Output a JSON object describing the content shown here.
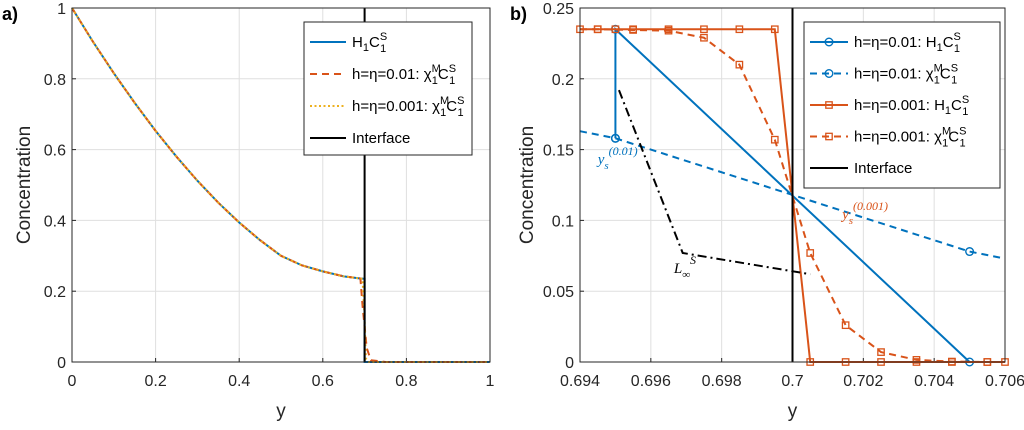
{
  "chart_data": [
    {
      "panel": "a)",
      "type": "line",
      "xlabel": "y",
      "ylabel": "Concentration",
      "xlim": [
        0,
        1
      ],
      "ylim": [
        0,
        1
      ],
      "xticks": [
        "0",
        "0.2",
        "0.4",
        "0.6",
        "0.8",
        "1"
      ],
      "yticks": [
        "0",
        "0.2",
        "0.4",
        "0.6",
        "0.8",
        "1"
      ],
      "grid": true,
      "legend_position": "top-right",
      "series": [
        {
          "name": "H1C1S",
          "legend_label": {
            "base": "H",
            "sub1": "1",
            "mid": "C",
            "sup": "S",
            "sub2": "1"
          },
          "color": "#0072BD",
          "style": "solid",
          "x": [
            0,
            0.05,
            0.1,
            0.15,
            0.2,
            0.25,
            0.3,
            0.35,
            0.4,
            0.45,
            0.5,
            0.55,
            0.6,
            0.65,
            0.69,
            0.7,
            0.7,
            0.75,
            1
          ],
          "y": [
            1,
            0.905,
            0.816,
            0.732,
            0.653,
            0.58,
            0.512,
            0.45,
            0.394,
            0.344,
            0.3,
            0.273,
            0.256,
            0.242,
            0.236,
            0.235,
            0,
            0,
            0
          ]
        },
        {
          "name": "h=η=0.01: χ1MC1S",
          "legend_label": {
            "prefix": "h=η=0.01: χ",
            "sup1": "M",
            "sub1": "1",
            "mid": "C",
            "sup2": "S",
            "sub2": "1"
          },
          "color": "#D95319",
          "style": "dashed",
          "x": [
            0,
            0.05,
            0.1,
            0.15,
            0.2,
            0.25,
            0.3,
            0.35,
            0.4,
            0.45,
            0.5,
            0.55,
            0.6,
            0.65,
            0.69,
            0.695,
            0.705,
            0.715,
            0.75,
            1
          ],
          "y": [
            1,
            0.905,
            0.816,
            0.732,
            0.653,
            0.58,
            0.512,
            0.45,
            0.394,
            0.344,
            0.3,
            0.273,
            0.256,
            0.242,
            0.236,
            0.16,
            0.04,
            0.005,
            0,
            0
          ]
        },
        {
          "name": "h=η=0.001: χ1MC1S",
          "legend_label": {
            "prefix": "h=η=0.001: χ",
            "sup1": "M",
            "sub1": "1",
            "mid": "C",
            "sup2": "S",
            "sub2": "1"
          },
          "color": "#EDB120",
          "style": "dotted",
          "x": [
            0,
            0.05,
            0.1,
            0.15,
            0.2,
            0.25,
            0.3,
            0.35,
            0.4,
            0.45,
            0.5,
            0.55,
            0.6,
            0.65,
            0.695,
            0.7,
            0.703,
            0.71,
            1
          ],
          "y": [
            1,
            0.905,
            0.816,
            0.732,
            0.653,
            0.58,
            0.512,
            0.45,
            0.394,
            0.344,
            0.3,
            0.273,
            0.256,
            0.242,
            0.235,
            0.12,
            0.01,
            0,
            0
          ]
        },
        {
          "name": "Interface",
          "color": "#000000",
          "style": "solid",
          "x": [
            0.7,
            0.7
          ],
          "y": [
            0,
            1
          ]
        }
      ]
    },
    {
      "panel": "b)",
      "type": "line",
      "xlabel": "y",
      "ylabel": "Concentration",
      "xlim": [
        0.694,
        0.706
      ],
      "ylim": [
        0,
        0.25
      ],
      "xticks": [
        "0.694",
        "0.696",
        "0.698",
        "0.7",
        "0.702",
        "0.704",
        "0.706"
      ],
      "yticks": [
        "0",
        "0.05",
        "0.1",
        "0.15",
        "0.2",
        "0.25"
      ],
      "grid": true,
      "legend_position": "top-right",
      "series": [
        {
          "name": "h=η=0.01: H1C1S",
          "legend_label": {
            "prefix": "h=η=0.01: H",
            "sub1": "1",
            "mid": "C",
            "sup": "S",
            "sub2": "1"
          },
          "color": "#0072BD",
          "style": "solid",
          "marker": "o",
          "x": [
            0.695,
            0.695,
            0.705
          ],
          "y": [
            0.158,
            0.235,
            0
          ],
          "markers_at": [
            [
              0.695,
              0.235
            ],
            [
              0.695,
              0.158
            ],
            [
              0.705,
              0
            ]
          ]
        },
        {
          "name": "h=η=0.01: χ1MC1S",
          "legend_label": {
            "prefix": "h=η=0.01: χ",
            "sup1": "M",
            "sub1": "1",
            "mid": "C",
            "sup2": "S",
            "sub2": "1"
          },
          "color": "#0072BD",
          "style": "dashed",
          "marker": "o",
          "x": [
            0.694,
            0.695,
            0.705,
            0.706
          ],
          "y": [
            0.163,
            0.158,
            0.078,
            0.073
          ],
          "markers_at": [
            [
              0.695,
              0.158
            ],
            [
              0.705,
              0.078
            ]
          ]
        },
        {
          "name": "h=η=0.001: H1C1S",
          "legend_label": {
            "prefix": "h=η=0.001: H",
            "sub1": "1",
            "mid": "C",
            "sup": "S",
            "sub2": "1"
          },
          "color": "#D95319",
          "style": "solid",
          "marker": "s",
          "x": [
            0.694,
            0.6995,
            0.7005,
            0.706
          ],
          "y": [
            0.235,
            0.235,
            0,
            0
          ],
          "markers_at": [
            [
              0.6945,
              0.235
            ],
            [
              0.695,
              0.235
            ],
            [
              0.6955,
              0.235
            ],
            [
              0.6965,
              0.235
            ],
            [
              0.6975,
              0.235
            ],
            [
              0.6985,
              0.235
            ],
            [
              0.6995,
              0.235
            ],
            [
              0.7005,
              0
            ],
            [
              0.7015,
              0
            ],
            [
              0.7025,
              0
            ],
            [
              0.7035,
              0
            ],
            [
              0.7045,
              0
            ],
            [
              0.7055,
              0
            ]
          ]
        },
        {
          "name": "h=η=0.001: χ1MC1S",
          "legend_label": {
            "prefix": "h=η=0.001: χ",
            "sup1": "M",
            "sub1": "1",
            "mid": "C",
            "sup2": "S",
            "sub2": "1"
          },
          "color": "#D95319",
          "style": "dashed",
          "marker": "s",
          "x": [
            0.694,
            0.6945,
            0.6955,
            0.6965,
            0.6975,
            0.6985,
            0.6995,
            0.7005,
            0.7015,
            0.7025,
            0.7035,
            0.7045,
            0.7055,
            0.706
          ],
          "y": [
            0.235,
            0.235,
            0.2345,
            0.234,
            0.229,
            0.21,
            0.157,
            0.077,
            0.026,
            0.007,
            0.0015,
            0.0003,
            0,
            0
          ]
        },
        {
          "name": "Interface",
          "color": "#000000",
          "style": "solid",
          "x": [
            0.7,
            0.7
          ],
          "y": [
            0,
            0.25
          ]
        },
        {
          "name": "L∞S",
          "color": "#000000",
          "style": "dashdot",
          "in_legend": false,
          "x": [
            0.6951,
            0.6969,
            0.7005
          ],
          "y": [
            0.192,
            0.077,
            0.062
          ]
        }
      ],
      "annotations": [
        {
          "base": "y",
          "sub": "s",
          "sup": "(0.01)",
          "color": "#0072BD",
          "at": [
            0.6945,
            0.14
          ]
        },
        {
          "base": "y",
          "sub": "s",
          "sup": "(0.001)",
          "color": "#D95319",
          "at": [
            0.7014,
            0.101
          ]
        },
        {
          "base": "L",
          "sub": "∞",
          "sup": "S",
          "color": "#000000",
          "at": [
            0.69665,
            0.063
          ]
        }
      ]
    }
  ]
}
